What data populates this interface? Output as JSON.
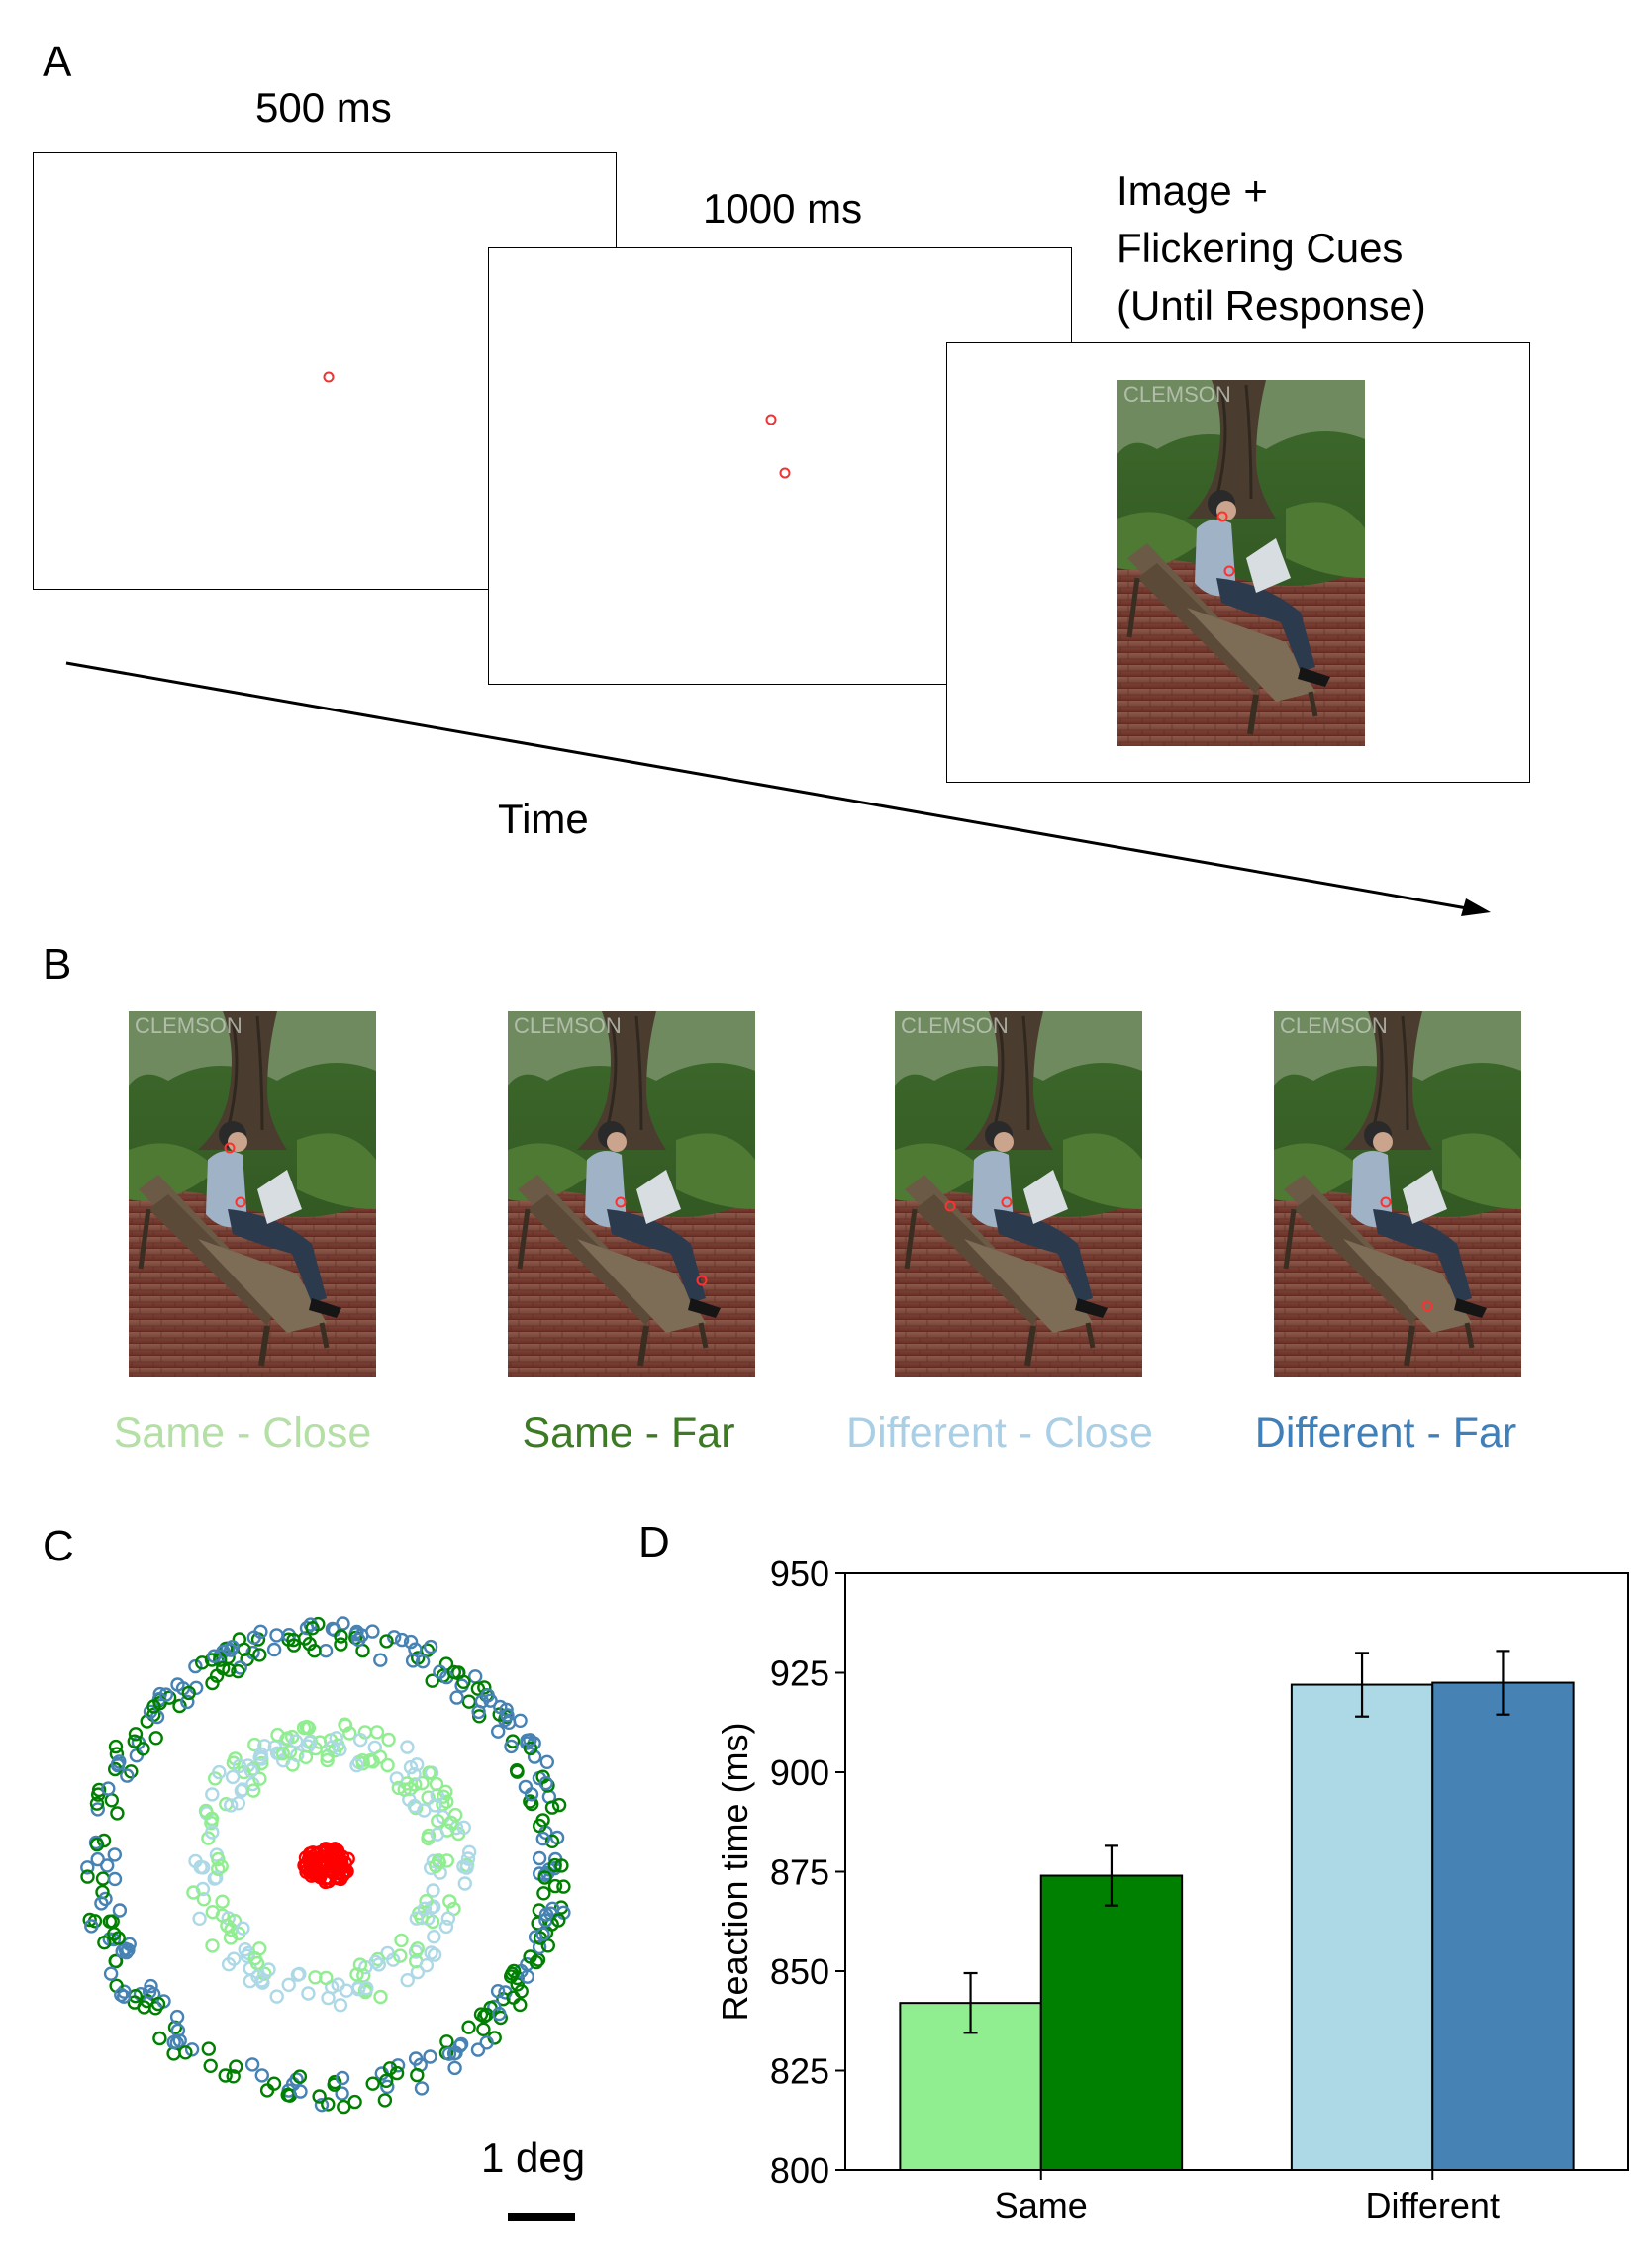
{
  "panel_a": {
    "letter": "A",
    "frame1_duration": "500 ms",
    "frame2_duration": "1000 ms",
    "frame3_label_lines": [
      "Image +",
      "Flickering Cues",
      "(Until Response)"
    ],
    "time_label": "Time"
  },
  "panel_b": {
    "letter": "B",
    "conditions": [
      {
        "label": "Same - Close",
        "color": "#b4dfa5"
      },
      {
        "label": "Same - Far",
        "color": "#3c7a24"
      },
      {
        "label": "Different - Close",
        "color": "#a9cfe6"
      },
      {
        "label": "Different - Far",
        "color": "#3f7fba"
      }
    ]
  },
  "panel_c": {
    "letter": "C",
    "scale_label": "1 deg"
  },
  "chart_data": {
    "type": "bar",
    "panel_letter": "D",
    "categories": [
      "Same",
      "Different"
    ],
    "ylabel": "Reaction time (ms)",
    "ylim": [
      800,
      950
    ],
    "yticks": [
      800,
      825,
      850,
      875,
      900,
      925,
      950
    ],
    "series": [
      {
        "values": [
          842,
          922
        ],
        "errors": [
          7.5,
          8
        ],
        "colors": [
          "#90ee90",
          "#add8e6"
        ]
      },
      {
        "values": [
          874,
          922.5
        ],
        "errors": [
          7.5,
          8
        ],
        "colors": [
          "#008000",
          "#4682b4"
        ]
      }
    ]
  }
}
